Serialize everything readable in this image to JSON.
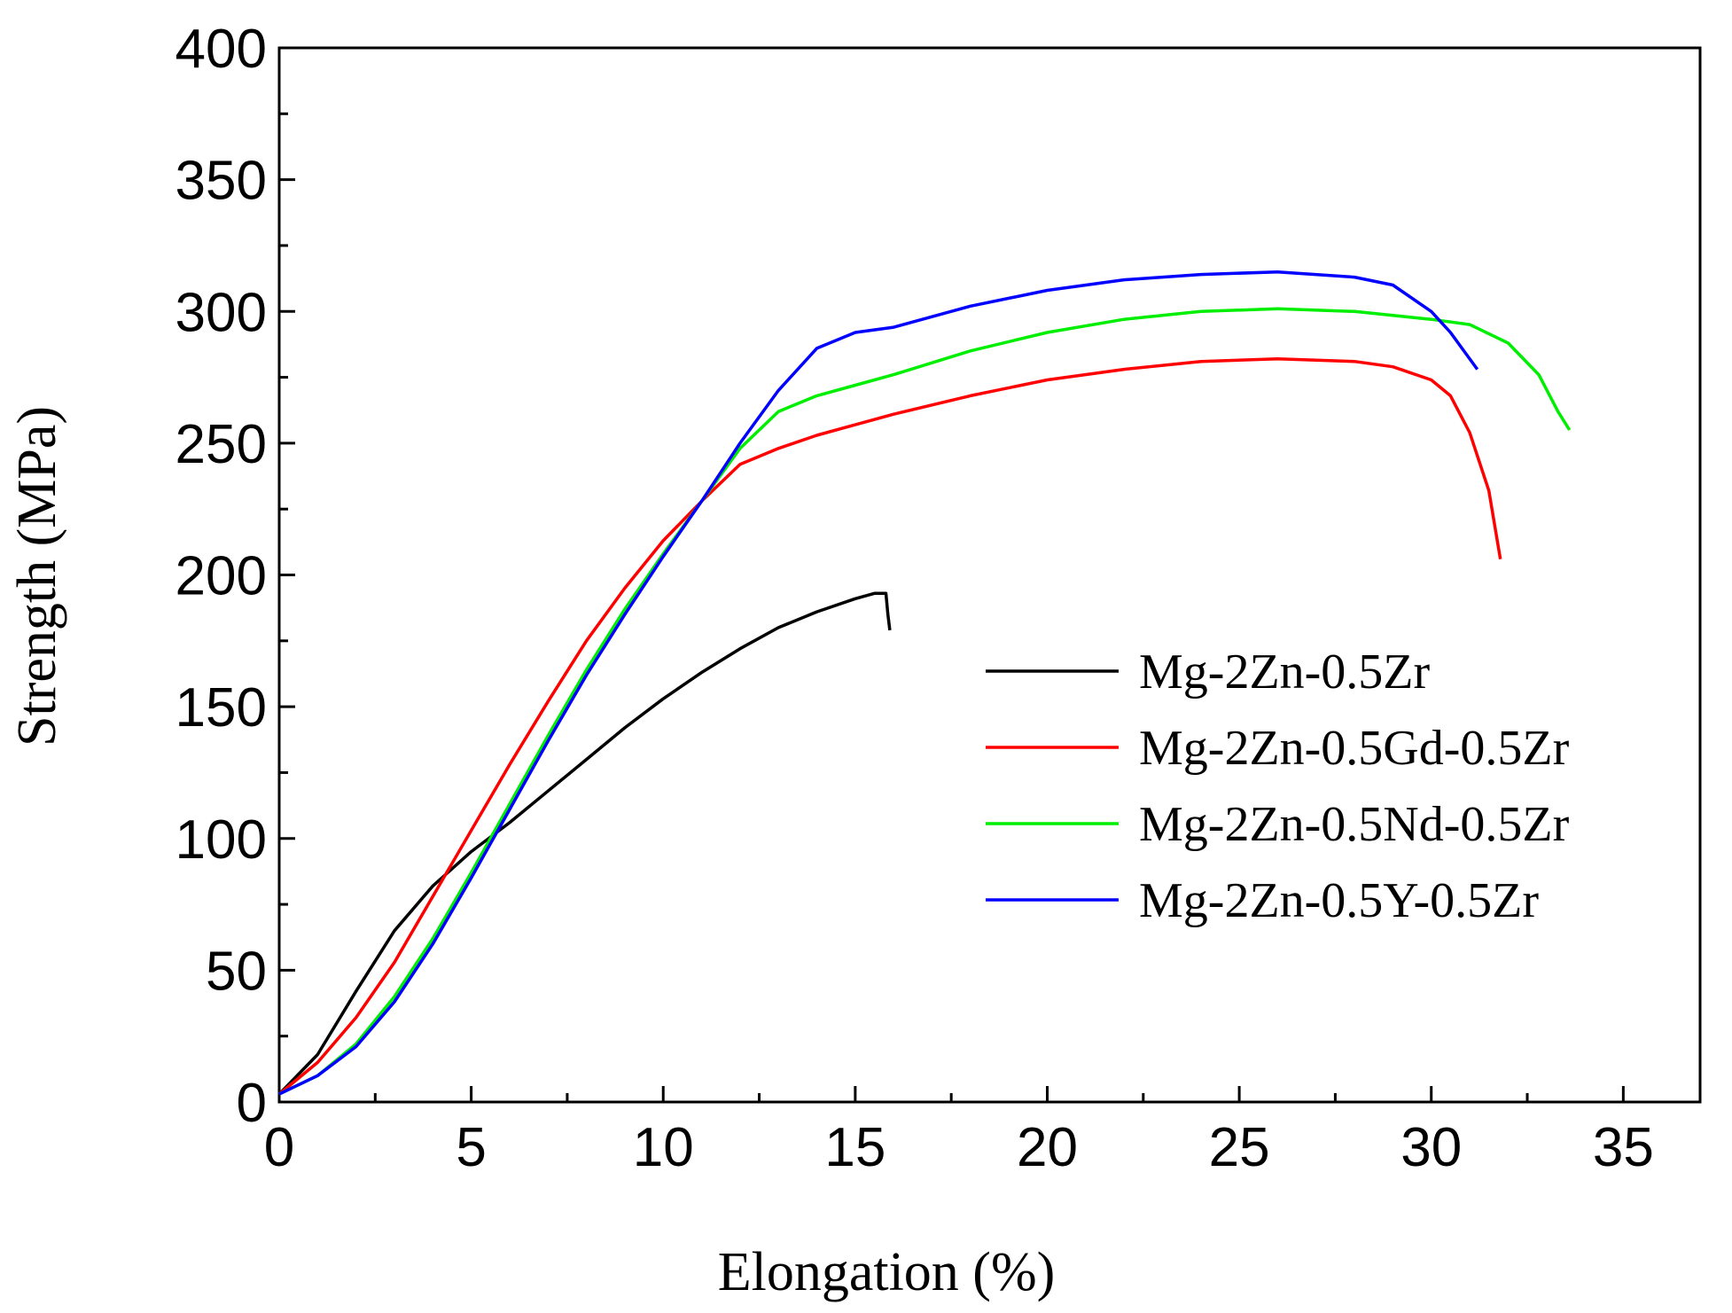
{
  "chart_data": {
    "type": "line",
    "title": "",
    "xlabel": "Elongation (%)",
    "ylabel": "Strength (MPa)",
    "xlim": [
      0,
      37
    ],
    "ylim": [
      0,
      400
    ],
    "xticks": [
      0,
      5,
      10,
      15,
      20,
      25,
      30,
      35
    ],
    "yticks": [
      0,
      50,
      100,
      150,
      200,
      250,
      300,
      350,
      400
    ],
    "grid": false,
    "legend_position": "center-right",
    "series": [
      {
        "name": "Mg-2Zn-0.5Zr",
        "color": "#000000",
        "points": [
          [
            0,
            3
          ],
          [
            1,
            18
          ],
          [
            2,
            42
          ],
          [
            3,
            65
          ],
          [
            4,
            82
          ],
          [
            5,
            95
          ],
          [
            6,
            106
          ],
          [
            7,
            118
          ],
          [
            8,
            130
          ],
          [
            9,
            142
          ],
          [
            10,
            153
          ],
          [
            11,
            163
          ],
          [
            12,
            172
          ],
          [
            13,
            180
          ],
          [
            14,
            186
          ],
          [
            15,
            191
          ],
          [
            15.5,
            193
          ],
          [
            15.8,
            193
          ],
          [
            15.85,
            185
          ],
          [
            15.9,
            179
          ]
        ]
      },
      {
        "name": "Mg-2Zn-0.5Gd-0.5Zr",
        "color": "#ff0000",
        "points": [
          [
            0,
            3
          ],
          [
            1,
            15
          ],
          [
            2,
            32
          ],
          [
            3,
            53
          ],
          [
            4,
            78
          ],
          [
            5,
            103
          ],
          [
            6,
            128
          ],
          [
            7,
            152
          ],
          [
            8,
            175
          ],
          [
            9,
            195
          ],
          [
            10,
            213
          ],
          [
            11,
            228
          ],
          [
            12,
            242
          ],
          [
            13,
            248
          ],
          [
            14,
            253
          ],
          [
            15,
            257
          ],
          [
            16,
            261
          ],
          [
            18,
            268
          ],
          [
            20,
            274
          ],
          [
            22,
            278
          ],
          [
            24,
            281
          ],
          [
            26,
            282
          ],
          [
            28,
            281
          ],
          [
            29,
            279
          ],
          [
            30,
            274
          ],
          [
            30.5,
            268
          ],
          [
            31,
            254
          ],
          [
            31.5,
            232
          ],
          [
            31.8,
            206
          ]
        ]
      },
      {
        "name": "Mg-2Zn-0.5Nd-0.5Zr",
        "color": "#00ee00",
        "points": [
          [
            0,
            3
          ],
          [
            1,
            10
          ],
          [
            2,
            22
          ],
          [
            3,
            40
          ],
          [
            4,
            62
          ],
          [
            5,
            87
          ],
          [
            6,
            113
          ],
          [
            7,
            139
          ],
          [
            8,
            164
          ],
          [
            9,
            187
          ],
          [
            10,
            208
          ],
          [
            11,
            228
          ],
          [
            12,
            248
          ],
          [
            13,
            262
          ],
          [
            14,
            268
          ],
          [
            15,
            272
          ],
          [
            16,
            276
          ],
          [
            18,
            285
          ],
          [
            20,
            292
          ],
          [
            22,
            297
          ],
          [
            24,
            300
          ],
          [
            26,
            301
          ],
          [
            28,
            300
          ],
          [
            30,
            297
          ],
          [
            31,
            295
          ],
          [
            32,
            288
          ],
          [
            32.8,
            276
          ],
          [
            33.3,
            262
          ],
          [
            33.6,
            255
          ]
        ]
      },
      {
        "name": "Mg-2Zn-0.5Y-0.5Zr",
        "color": "#0000ff",
        "points": [
          [
            0,
            3
          ],
          [
            1,
            10
          ],
          [
            2,
            21
          ],
          [
            3,
            38
          ],
          [
            4,
            60
          ],
          [
            5,
            85
          ],
          [
            6,
            111
          ],
          [
            7,
            137
          ],
          [
            8,
            162
          ],
          [
            9,
            185
          ],
          [
            10,
            207
          ],
          [
            11,
            228
          ],
          [
            12,
            250
          ],
          [
            13,
            270
          ],
          [
            14,
            286
          ],
          [
            15,
            292
          ],
          [
            16,
            294
          ],
          [
            18,
            302
          ],
          [
            20,
            308
          ],
          [
            22,
            312
          ],
          [
            24,
            314
          ],
          [
            26,
            315
          ],
          [
            28,
            313
          ],
          [
            29,
            310
          ],
          [
            30,
            300
          ],
          [
            30.5,
            292
          ],
          [
            31.2,
            278
          ]
        ]
      }
    ]
  }
}
